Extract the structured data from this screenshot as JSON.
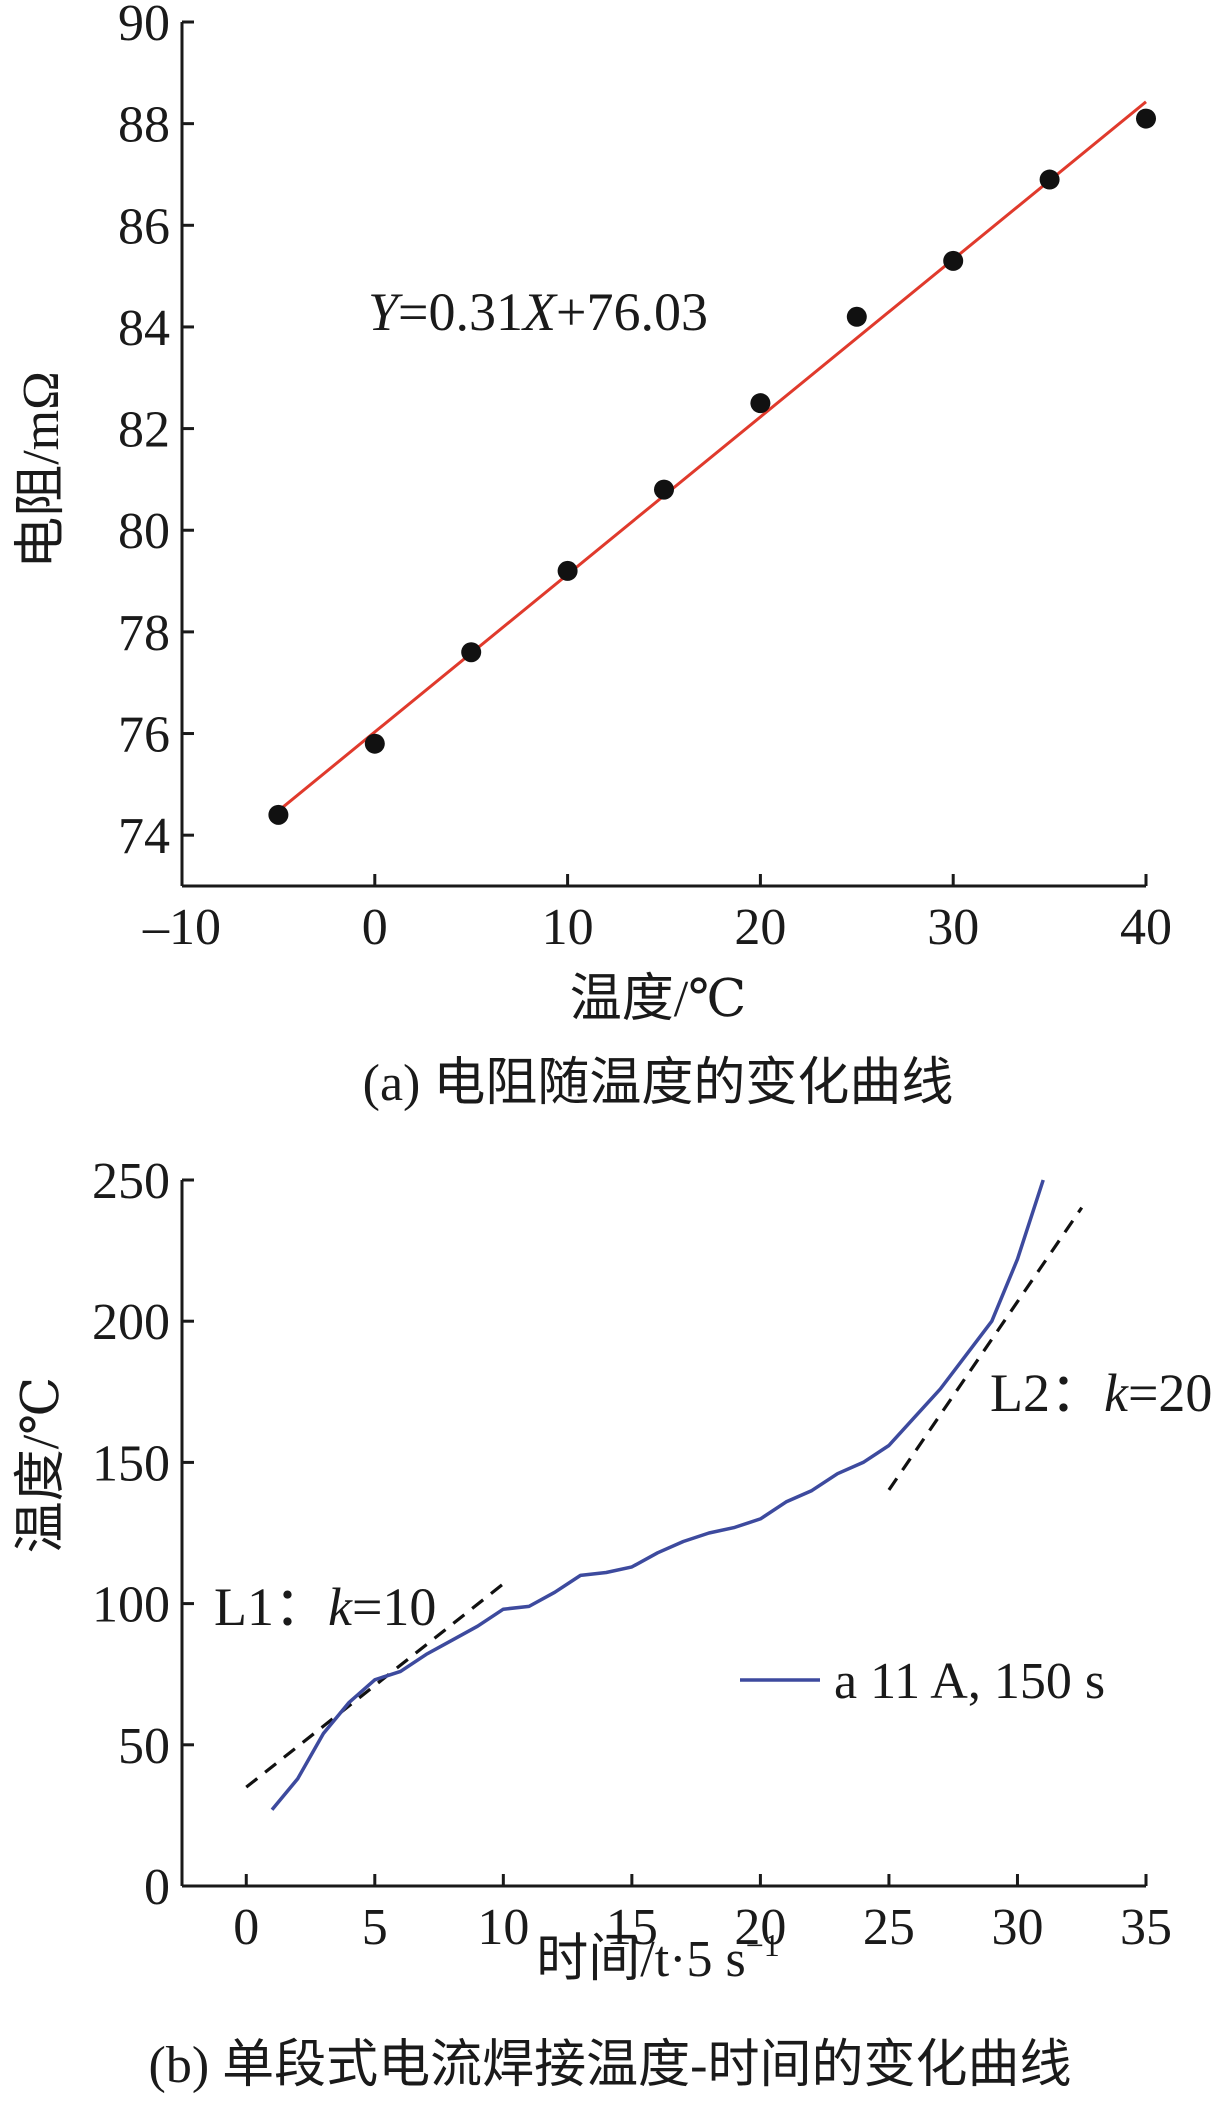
{
  "chart_data": [
    {
      "type": "scatter",
      "xlabel": "温度/℃",
      "ylabel": "电阻/mΩ",
      "caption": "(a) 电阻随温度的变化曲线",
      "xlim": [
        -10,
        40
      ],
      "ylim": [
        73,
        90
      ],
      "xticks": [
        -10,
        0,
        10,
        20,
        30,
        40
      ],
      "xtick_labels": [
        "–10",
        "0",
        "10",
        "20",
        "30",
        "40"
      ],
      "yticks": [
        74,
        76,
        78,
        80,
        82,
        84,
        86,
        88,
        90
      ],
      "ytick_labels": [
        "74",
        "76",
        "78",
        "80",
        "82",
        "84",
        "86",
        "88",
        "90"
      ],
      "series": [
        {
          "x": [
            -5,
            0,
            5,
            10,
            15,
            20,
            25,
            30,
            35,
            40
          ],
          "y": [
            74.4,
            75.8,
            77.6,
            79.2,
            80.8,
            82.5,
            84.2,
            85.3,
            86.9,
            88.1
          ],
          "color": "#111111",
          "marker": "dot"
        }
      ],
      "fit_line": {
        "x_range": [
          -5,
          40
        ],
        "slope": 0.31,
        "intercept": 76.03,
        "color": "#e03a2c",
        "label": "Y=0.31X+76.03"
      }
    },
    {
      "type": "line",
      "xlabel": "时间/t·5 s⁻¹",
      "ylabel": "温度/℃",
      "caption": "(b) 单段式电流焊接温度-时间的变化曲线",
      "xlim": [
        -2.5,
        35
      ],
      "ylim": [
        0,
        250
      ],
      "xticks": [
        0,
        5,
        10,
        15,
        20,
        25,
        30,
        35
      ],
      "xtick_labels": [
        "0",
        "5",
        "10",
        "15",
        "20",
        "25",
        "30",
        "35"
      ],
      "yticks": [
        0,
        50,
        100,
        150,
        200,
        250
      ],
      "ytick_labels": [
        "0",
        "50",
        "100",
        "150",
        "200",
        "250"
      ],
      "series": [
        {
          "name": "a 11 A, 150 s",
          "color": "#3d4a9e",
          "x": [
            1,
            2,
            3,
            4,
            5,
            6,
            7,
            8,
            9,
            10,
            11,
            12,
            13,
            14,
            15,
            16,
            17,
            18,
            19,
            20,
            21,
            22,
            23,
            24,
            25,
            26,
            27,
            28,
            29,
            30,
            31
          ],
          "y": [
            27,
            38,
            54,
            65,
            73,
            76,
            82,
            87,
            92,
            98,
            99,
            104,
            110,
            111,
            113,
            118,
            122,
            125,
            127,
            130,
            136,
            140,
            146,
            150,
            156,
            166,
            176,
            188,
            200,
            222,
            250
          ]
        }
      ],
      "legend": {
        "entries": [
          "a 11 A, 150 s"
        ],
        "placement": "center-right"
      },
      "reference_lines": [
        {
          "label_prefix": "L1：",
          "k_symbol": "k",
          "label_suffix": "=10",
          "x_range": [
            0,
            10
          ],
          "slope": 7.2,
          "intercept": 35,
          "color": "#111111",
          "dash": true
        },
        {
          "label_prefix": "L2：",
          "k_symbol": "k",
          "label_suffix": "=20",
          "x_range": [
            25,
            32.5
          ],
          "slope": 13.33,
          "intercept": -193,
          "color": "#111111",
          "dash": true
        }
      ]
    }
  ]
}
